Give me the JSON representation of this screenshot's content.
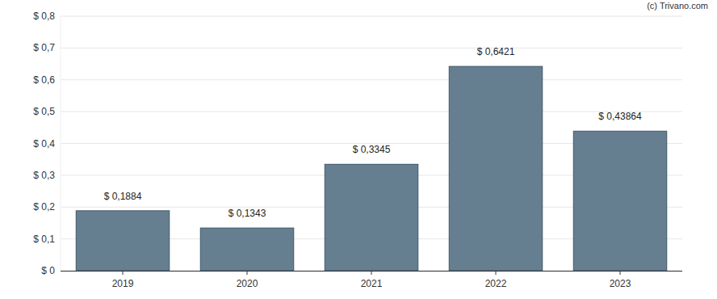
{
  "chart_data": {
    "type": "bar",
    "annotation": "(c) Trivano.com",
    "categories": [
      "2019",
      "2020",
      "2021",
      "2022",
      "2023"
    ],
    "values": [
      0.1884,
      0.1343,
      0.3345,
      0.6421,
      0.43864
    ],
    "value_labels": [
      "$ 0,1884",
      "$ 0,1343",
      "$ 0,3345",
      "$ 0,6421",
      "$ 0,43864"
    ],
    "color": "#657f91",
    "ylim": [
      0,
      0.8
    ],
    "yticks": [
      {
        "value": 0,
        "label": "$ 0"
      },
      {
        "value": 0.1,
        "label": "$ 0,1"
      },
      {
        "value": 0.2,
        "label": "$ 0,2"
      },
      {
        "value": 0.3,
        "label": "$ 0,3"
      },
      {
        "value": 0.4,
        "label": "$ 0,4"
      },
      {
        "value": 0.5,
        "label": "$ 0,5"
      },
      {
        "value": 0.6,
        "label": "$ 0,6"
      },
      {
        "value": 0.7,
        "label": "$ 0,7"
      },
      {
        "value": 0.8,
        "label": "$ 0,8"
      }
    ],
    "grid": true,
    "data_labels": true
  }
}
